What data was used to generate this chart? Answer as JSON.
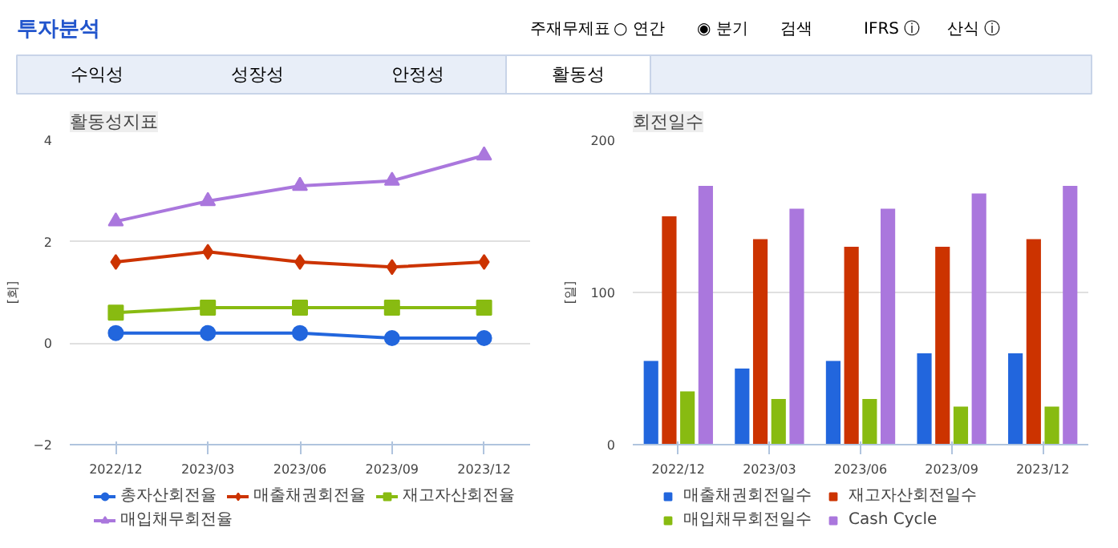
{
  "chart_data": [
    {
      "type": "line",
      "title": "활동성지표",
      "ylabel": "[회]",
      "annotations": [
        "투자분석",
        "주재무제표",
        "○ 연간",
        "◉ 분기",
        "검색",
        "IFRS ⓘ",
        "산식 ⓘ",
        "수익성",
        "성장성",
        "안정성",
        "활동성"
      ],
      "categories": [
        "2022/12",
        "2023/03",
        "2023/06",
        "2023/09",
        "2023/12"
      ],
      "series": [
        {
          "name": "총자산회전율",
          "color": "#2266dd",
          "marker": "circle",
          "values": [
            0.2,
            0.2,
            0.2,
            0.1,
            0.1
          ]
        },
        {
          "name": "매출채권회전율",
          "color": "#cc3300",
          "marker": "diamond",
          "values": [
            1.6,
            1.8,
            1.6,
            1.5,
            1.6
          ]
        },
        {
          "name": "재고자산회전율",
          "color": "#88bb11",
          "marker": "square",
          "values": [
            0.6,
            0.7,
            0.7,
            0.7,
            0.7
          ]
        },
        {
          "name": "매입채무회전율",
          "color": "#aa77dd",
          "marker": "triangle",
          "values": [
            2.4,
            2.8,
            3.1,
            3.2,
            3.7
          ]
        }
      ],
      "ylim": [
        -2,
        4
      ],
      "yticks": [
        -2,
        0,
        2,
        4
      ],
      "grid": "y",
      "legend": "bottom"
    },
    {
      "type": "bar",
      "title": "회전일수",
      "ylabel": "[일]",
      "categories": [
        "2022/12",
        "2023/03",
        "2023/06",
        "2023/09",
        "2023/12"
      ],
      "series": [
        {
          "name": "매출채권회전일수",
          "color": "#2266dd",
          "values": [
            55,
            50,
            55,
            60,
            60
          ]
        },
        {
          "name": "재고자산회전일수",
          "color": "#cc3300",
          "values": [
            150,
            135,
            130,
            130,
            135
          ]
        },
        {
          "name": "매입채무회전일수",
          "color": "#88bb11",
          "values": [
            35,
            30,
            30,
            25,
            25
          ]
        },
        {
          "name": "Cash Cycle",
          "color": "#aa77dd",
          "values": [
            170,
            155,
            155,
            165,
            170
          ]
        }
      ],
      "ylim": [
        0,
        200
      ],
      "yticks": [
        0,
        100,
        200
      ],
      "grid": "y",
      "legend": "bottom"
    }
  ]
}
